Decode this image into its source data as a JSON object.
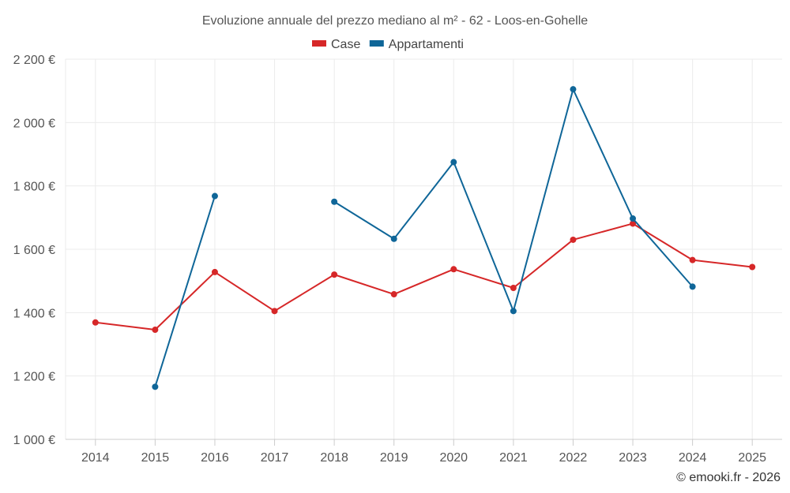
{
  "chart_data": {
    "type": "line",
    "title": "Evoluzione annuale del prezzo mediano al m² - 62 - Loos-en-Gohelle",
    "categories": [
      "2014",
      "2015",
      "2016",
      "2017",
      "2018",
      "2019",
      "2020",
      "2021",
      "2022",
      "2023",
      "2024",
      "2025"
    ],
    "series": [
      {
        "name": "Case",
        "color": "#d62728",
        "values": [
          1369,
          1346,
          1528,
          1405,
          1520,
          1458,
          1537,
          1478,
          1630,
          1681,
          1566,
          1544
        ]
      },
      {
        "name": "Appartamenti",
        "color": "#0f6698",
        "values": [
          null,
          1166,
          1768,
          null,
          1750,
          1633,
          1875,
          1405,
          2105,
          1697,
          1482,
          null
        ]
      }
    ],
    "ylim": [
      1000,
      2200
    ],
    "yticks": [
      1000,
      1200,
      1400,
      1600,
      1800,
      2000,
      2200
    ],
    "ytick_labels": [
      "1 000 €",
      "1 200 €",
      "1 400 €",
      "1 600 €",
      "1 800 €",
      "2 000 €",
      "2 200 €"
    ],
    "xlabel": "",
    "ylabel": "",
    "grid": true,
    "legend_position": "top-center"
  },
  "credit": "© emooki.fr - 2026"
}
